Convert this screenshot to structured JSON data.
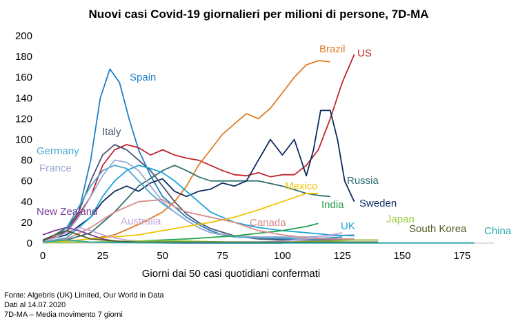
{
  "chart_data": {
    "type": "line",
    "title": "Nuovi casi Covid-19 giornalieri per milioni di persone, 7D-MA",
    "xlabel": "Giorni dai 50 casi quotidiani confermati",
    "ylabel": "",
    "xlim": [
      0,
      190
    ],
    "ylim": [
      0,
      200
    ],
    "xticks": [
      0,
      25,
      50,
      75,
      100,
      125,
      150,
      175
    ],
    "yticks": [
      0,
      20,
      40,
      60,
      80,
      100,
      120,
      140,
      160,
      180,
      200
    ],
    "grid": false,
    "legend": "inline labels",
    "series": [
      {
        "name": "Spain",
        "color": "#1f7fc4",
        "points": [
          [
            0,
            2
          ],
          [
            5,
            5
          ],
          [
            10,
            12
          ],
          [
            15,
            30
          ],
          [
            20,
            80
          ],
          [
            24,
            140
          ],
          [
            28,
            168
          ],
          [
            32,
            155
          ],
          [
            36,
            120
          ],
          [
            40,
            90
          ],
          [
            45,
            65
          ],
          [
            50,
            45
          ],
          [
            55,
            35
          ],
          [
            60,
            25
          ],
          [
            65,
            18
          ],
          [
            70,
            12
          ],
          [
            75,
            8
          ],
          [
            80,
            6
          ],
          [
            90,
            5
          ],
          [
            100,
            4
          ],
          [
            110,
            4
          ],
          [
            120,
            5
          ],
          [
            125,
            6
          ]
        ]
      },
      {
        "name": "US",
        "color": "#c0232c",
        "points": [
          [
            0,
            2
          ],
          [
            10,
            10
          ],
          [
            20,
            45
          ],
          [
            25,
            75
          ],
          [
            30,
            90
          ],
          [
            35,
            95
          ],
          [
            40,
            92
          ],
          [
            45,
            85
          ],
          [
            50,
            90
          ],
          [
            55,
            85
          ],
          [
            60,
            82
          ],
          [
            65,
            80
          ],
          [
            70,
            75
          ],
          [
            75,
            70
          ],
          [
            80,
            66
          ],
          [
            85,
            65
          ],
          [
            90,
            68
          ],
          [
            95,
            64
          ],
          [
            100,
            66
          ],
          [
            105,
            66
          ],
          [
            110,
            75
          ],
          [
            115,
            90
          ],
          [
            120,
            120
          ],
          [
            125,
            155
          ],
          [
            130,
            182
          ]
        ]
      },
      {
        "name": "Brazil",
        "color": "#e07b24",
        "points": [
          [
            0,
            1
          ],
          [
            10,
            2
          ],
          [
            20,
            4
          ],
          [
            30,
            8
          ],
          [
            40,
            18
          ],
          [
            50,
            30
          ],
          [
            55,
            40
          ],
          [
            60,
            55
          ],
          [
            65,
            75
          ],
          [
            70,
            90
          ],
          [
            75,
            105
          ],
          [
            80,
            115
          ],
          [
            85,
            125
          ],
          [
            90,
            120
          ],
          [
            95,
            130
          ],
          [
            100,
            145
          ],
          [
            105,
            160
          ],
          [
            110,
            172
          ],
          [
            115,
            176
          ],
          [
            120,
            175
          ]
        ]
      },
      {
        "name": "Russia",
        "color": "#2f6f6f",
        "points": [
          [
            0,
            1
          ],
          [
            10,
            3
          ],
          [
            20,
            10
          ],
          [
            30,
            30
          ],
          [
            40,
            55
          ],
          [
            50,
            70
          ],
          [
            55,
            75
          ],
          [
            60,
            70
          ],
          [
            65,
            64
          ],
          [
            70,
            60
          ],
          [
            80,
            60
          ],
          [
            90,
            60
          ],
          [
            100,
            55
          ],
          [
            110,
            48
          ],
          [
            115,
            46
          ],
          [
            120,
            45
          ]
        ]
      },
      {
        "name": "Sweden",
        "color": "#0b2a5e",
        "points": [
          [
            0,
            2
          ],
          [
            10,
            8
          ],
          [
            20,
            25
          ],
          [
            25,
            40
          ],
          [
            30,
            50
          ],
          [
            35,
            55
          ],
          [
            40,
            50
          ],
          [
            45,
            58
          ],
          [
            50,
            62
          ],
          [
            55,
            50
          ],
          [
            60,
            45
          ],
          [
            65,
            50
          ],
          [
            70,
            52
          ],
          [
            75,
            58
          ],
          [
            80,
            55
          ],
          [
            85,
            60
          ],
          [
            90,
            80
          ],
          [
            95,
            100
          ],
          [
            100,
            85
          ],
          [
            105,
            100
          ],
          [
            110,
            65
          ],
          [
            113,
            90
          ],
          [
            116,
            128
          ],
          [
            120,
            128
          ],
          [
            123,
            100
          ],
          [
            126,
            60
          ],
          [
            130,
            40
          ]
        ]
      },
      {
        "name": "Italy",
        "color": "#4a5470",
        "points": [
          [
            0,
            3
          ],
          [
            5,
            8
          ],
          [
            10,
            15
          ],
          [
            15,
            30
          ],
          [
            20,
            60
          ],
          [
            25,
            85
          ],
          [
            30,
            95
          ],
          [
            35,
            90
          ],
          [
            40,
            80
          ],
          [
            45,
            70
          ],
          [
            50,
            55
          ],
          [
            55,
            40
          ],
          [
            60,
            28
          ],
          [
            65,
            20
          ],
          [
            70,
            14
          ],
          [
            80,
            7
          ],
          [
            90,
            4
          ],
          [
            100,
            3
          ],
          [
            110,
            3
          ],
          [
            120,
            3
          ],
          [
            130,
            3
          ],
          [
            140,
            3
          ]
        ]
      },
      {
        "name": "Germany",
        "color": "#49a7cc",
        "points": [
          [
            0,
            2
          ],
          [
            5,
            5
          ],
          [
            10,
            15
          ],
          [
            15,
            35
          ],
          [
            20,
            55
          ],
          [
            25,
            70
          ],
          [
            30,
            75
          ],
          [
            35,
            72
          ],
          [
            40,
            60
          ],
          [
            45,
            48
          ],
          [
            50,
            38
          ],
          [
            55,
            30
          ],
          [
            60,
            22
          ],
          [
            65,
            15
          ],
          [
            70,
            10
          ],
          [
            80,
            6
          ],
          [
            90,
            5
          ],
          [
            100,
            5
          ],
          [
            110,
            4
          ],
          [
            120,
            4
          ],
          [
            130,
            4
          ]
        ]
      },
      {
        "name": "France",
        "color": "#9aaad0",
        "points": [
          [
            0,
            2
          ],
          [
            5,
            5
          ],
          [
            10,
            10
          ],
          [
            15,
            25
          ],
          [
            20,
            45
          ],
          [
            25,
            65
          ],
          [
            30,
            80
          ],
          [
            35,
            78
          ],
          [
            40,
            70
          ],
          [
            45,
            55
          ],
          [
            50,
            40
          ],
          [
            55,
            30
          ],
          [
            60,
            22
          ],
          [
            65,
            15
          ],
          [
            70,
            10
          ],
          [
            80,
            7
          ],
          [
            90,
            6
          ],
          [
            100,
            6
          ],
          [
            110,
            6
          ],
          [
            120,
            7
          ],
          [
            130,
            8
          ]
        ]
      },
      {
        "name": "UK",
        "color": "#1aa3d8",
        "points": [
          [
            0,
            1
          ],
          [
            10,
            5
          ],
          [
            20,
            25
          ],
          [
            25,
            45
          ],
          [
            30,
            60
          ],
          [
            35,
            70
          ],
          [
            40,
            75
          ],
          [
            45,
            72
          ],
          [
            50,
            68
          ],
          [
            55,
            60
          ],
          [
            60,
            50
          ],
          [
            65,
            40
          ],
          [
            70,
            30
          ],
          [
            75,
            25
          ],
          [
            80,
            20
          ],
          [
            90,
            15
          ],
          [
            100,
            12
          ],
          [
            110,
            10
          ],
          [
            120,
            8
          ],
          [
            130,
            7
          ]
        ]
      },
      {
        "name": "Mexico",
        "color": "#f2c200",
        "points": [
          [
            0,
            1
          ],
          [
            10,
            2
          ],
          [
            20,
            4
          ],
          [
            30,
            6
          ],
          [
            40,
            8
          ],
          [
            50,
            12
          ],
          [
            60,
            16
          ],
          [
            70,
            20
          ],
          [
            80,
            25
          ],
          [
            90,
            32
          ],
          [
            100,
            40
          ],
          [
            110,
            48
          ],
          [
            115,
            48
          ]
        ]
      },
      {
        "name": "India",
        "color": "#21a04a",
        "points": [
          [
            0,
            0.5
          ],
          [
            20,
            1
          ],
          [
            40,
            2
          ],
          [
            60,
            4
          ],
          [
            80,
            7
          ],
          [
            100,
            12
          ],
          [
            110,
            16
          ],
          [
            115,
            19
          ]
        ]
      },
      {
        "name": "Canada",
        "color": "#d58a8a",
        "points": [
          [
            0,
            1
          ],
          [
            10,
            4
          ],
          [
            20,
            15
          ],
          [
            30,
            30
          ],
          [
            40,
            40
          ],
          [
            50,
            42
          ],
          [
            55,
            35
          ],
          [
            60,
            30
          ],
          [
            70,
            25
          ],
          [
            80,
            20
          ],
          [
            90,
            12
          ],
          [
            100,
            8
          ],
          [
            110,
            5
          ],
          [
            120,
            4
          ],
          [
            130,
            4
          ]
        ]
      },
      {
        "name": "Australia",
        "color": "#c5a8d8",
        "points": [
          [
            0,
            1
          ],
          [
            5,
            5
          ],
          [
            10,
            10
          ],
          [
            15,
            15
          ],
          [
            20,
            12
          ],
          [
            25,
            8
          ],
          [
            30,
            5
          ],
          [
            35,
            3
          ],
          [
            40,
            2
          ],
          [
            50,
            1
          ],
          [
            60,
            1
          ],
          [
            70,
            1
          ],
          [
            80,
            1
          ],
          [
            90,
            1
          ],
          [
            100,
            2
          ],
          [
            110,
            4
          ],
          [
            120,
            8
          ],
          [
            125,
            10
          ]
        ]
      },
      {
        "name": "New Zealand",
        "color": "#7b3f98",
        "points": [
          [
            0,
            8
          ],
          [
            5,
            12
          ],
          [
            10,
            15
          ],
          [
            15,
            12
          ],
          [
            20,
            8
          ],
          [
            25,
            4
          ],
          [
            30,
            2
          ],
          [
            35,
            1
          ],
          [
            40,
            0.5
          ],
          [
            60,
            0
          ],
          [
            80,
            0
          ],
          [
            100,
            0
          ]
        ]
      },
      {
        "name": "Japan",
        "color": "#9ccc3c",
        "points": [
          [
            0,
            0.5
          ],
          [
            20,
            1
          ],
          [
            40,
            2
          ],
          [
            60,
            2
          ],
          [
            80,
            1
          ],
          [
            100,
            1
          ],
          [
            120,
            2
          ],
          [
            130,
            3
          ],
          [
            140,
            3
          ]
        ]
      },
      {
        "name": "South Korea",
        "color": "#4f5a22",
        "points": [
          [
            0,
            2
          ],
          [
            5,
            8
          ],
          [
            10,
            12
          ],
          [
            15,
            8
          ],
          [
            20,
            4
          ],
          [
            30,
            2
          ],
          [
            40,
            1
          ],
          [
            60,
            1
          ],
          [
            80,
            1
          ],
          [
            100,
            1
          ],
          [
            120,
            1
          ],
          [
            140,
            1
          ]
        ]
      },
      {
        "name": "China",
        "color": "#2aa6a6",
        "points": [
          [
            0,
            1
          ],
          [
            5,
            2
          ],
          [
            10,
            3
          ],
          [
            15,
            2
          ],
          [
            20,
            1
          ],
          [
            30,
            0.5
          ],
          [
            50,
            0.2
          ],
          [
            80,
            0.1
          ],
          [
            120,
            0.1
          ],
          [
            160,
            0.1
          ],
          [
            180,
            0.1
          ]
        ]
      }
    ]
  },
  "labels": {
    "Spain": "Spain",
    "US": "US",
    "Brazil": "Brazil",
    "Russia": "Russia",
    "Sweden": "Sweden",
    "Italy": "Italy",
    "Germany": "Germany",
    "France": "France",
    "UK": "UK",
    "Mexico": "Mexico",
    "India": "India",
    "Canada": "Canada",
    "Australia": "Australia",
    "New Zealand": "New Zealand",
    "Japan": "Japan",
    "South Korea": "South Korea",
    "China": "China"
  },
  "source": {
    "line1": "Fonte: Algebris (UK) Limited, Our World in Data",
    "line2": "Dati al 14.07.2020",
    "line3": "7D-MA – Media movimento 7 giorni"
  }
}
